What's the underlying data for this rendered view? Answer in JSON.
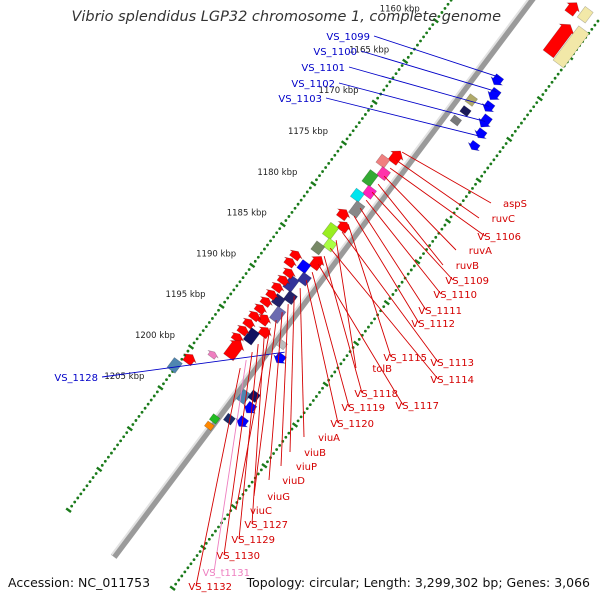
{
  "map": {
    "title": "Vibrio splendidus LGP32 chromosome 1, complete genome",
    "accession_text": "Accession: NC_011753",
    "summary_text": "Topology: circular; Length: 3,299,302 bp; Genes: 3,066",
    "tick_labels": [
      "1160 kbp",
      "1165 kbp",
      "1170 kbp",
      "1175 kbp",
      "1180 kbp",
      "1185 kbp",
      "1190 kbp",
      "1195 kbp",
      "1200 kbp",
      "1205 kbp"
    ],
    "colors": {
      "forward_strand_gene": "#0000ff",
      "reverse_strand_gene": "#ff0000",
      "backbone": "#999999",
      "tick_marks": "#1a7a1a",
      "label_forward": "#0000c8",
      "label_reverse": "#d40000",
      "label_trna": "#ee7fc0"
    },
    "forward_labels": [
      {
        "text": "VS_1099"
      },
      {
        "text": "VS_1100"
      },
      {
        "text": "VS_1101"
      },
      {
        "text": "VS_1102"
      },
      {
        "text": "VS_1103"
      },
      {
        "text": "VS_1128"
      }
    ],
    "reverse_labels": [
      {
        "text": "aspS"
      },
      {
        "text": "ruvC"
      },
      {
        "text": "VS_1106"
      },
      {
        "text": "ruvA"
      },
      {
        "text": "ruvB"
      },
      {
        "text": "VS_1109"
      },
      {
        "text": "VS_1110"
      },
      {
        "text": "VS_1111"
      },
      {
        "text": "VS_1112"
      },
      {
        "text": "VS_1115"
      },
      {
        "text": "VS_1113"
      },
      {
        "text": "tolB"
      },
      {
        "text": "VS_1114"
      },
      {
        "text": "VS_1118"
      },
      {
        "text": "VS_1117"
      },
      {
        "text": "VS_1119"
      },
      {
        "text": "VS_1120"
      },
      {
        "text": "viuA"
      },
      {
        "text": "viuB"
      },
      {
        "text": "viuP"
      },
      {
        "text": "viuD"
      },
      {
        "text": "viuG"
      },
      {
        "text": "viuC"
      },
      {
        "text": "VS_1127"
      },
      {
        "text": "VS_1129"
      },
      {
        "text": "VS_1130"
      },
      {
        "text": "VS_t1131",
        "rna": true
      },
      {
        "text": "VS_1132"
      }
    ]
  }
}
